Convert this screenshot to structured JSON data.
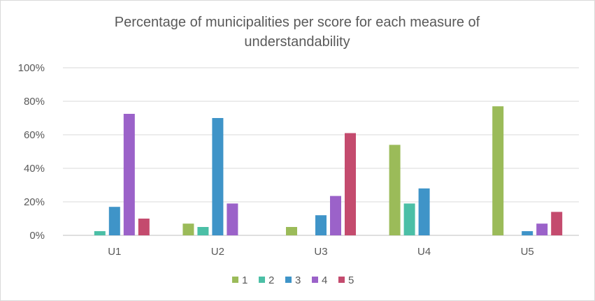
{
  "chart_data": {
    "type": "bar",
    "title_line1": "Percentage of municipalities per score for each measure of",
    "title_line2": "understandability",
    "categories": [
      "U1",
      "U2",
      "U3",
      "U4",
      "U5"
    ],
    "series": [
      {
        "name": "1",
        "color": "#9BBB59",
        "values": [
          0,
          7,
          5,
          54,
          77
        ]
      },
      {
        "name": "2",
        "color": "#4BBFA6",
        "values": [
          2.5,
          5,
          0,
          19,
          0
        ]
      },
      {
        "name": "3",
        "color": "#3F94C8",
        "values": [
          17,
          70,
          12,
          28,
          2.5
        ]
      },
      {
        "name": "4",
        "color": "#9B62C9",
        "values": [
          72.5,
          19,
          23.5,
          0,
          7
        ]
      },
      {
        "name": "5",
        "color": "#C44B6E",
        "values": [
          10,
          0,
          61,
          0,
          14
        ]
      }
    ],
    "ylim": [
      0,
      100
    ],
    "yticks": [
      "0%",
      "20%",
      "40%",
      "60%",
      "80%",
      "100%"
    ],
    "ytick_values": [
      0,
      20,
      40,
      60,
      80,
      100
    ],
    "grid": true,
    "legend_position": "bottom"
  }
}
